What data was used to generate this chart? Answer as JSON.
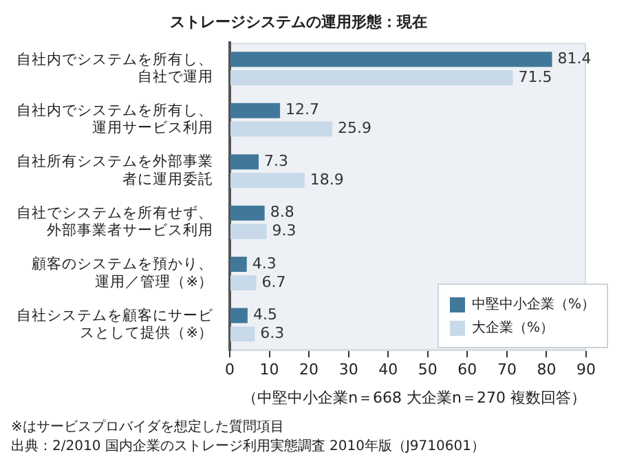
{
  "chart_data": {
    "type": "bar",
    "orientation": "horizontal",
    "title": "ストレージシステムの運用形態：現在",
    "xlabel": "（中堅中小企業n＝668 大企業n＝270 複数回答）",
    "categories": [
      "自社内でシステムを所有し、自社で運用",
      "自社内でシステムを所有し、運用サービス利用",
      "自社所有システムを外部事業者に運用委託",
      "自社でシステムを所有せず、外部事業者サービス利用",
      "顧客のシステムを預かり、運用／管理（※）",
      "自社システムを顧客にサービスとして提供（※）"
    ],
    "series": [
      {
        "name": "中堅中小企業（%）",
        "color": "#41789a",
        "values": [
          81.4,
          12.7,
          7.3,
          8.8,
          4.3,
          4.5
        ]
      },
      {
        "name": "大企業（%）",
        "color": "#c8d9e9",
        "values": [
          71.5,
          25.9,
          18.9,
          9.3,
          6.7,
          6.3
        ]
      }
    ],
    "xlim": [
      0,
      90
    ],
    "xticks": [
      0,
      10,
      20,
      30,
      40,
      50,
      60,
      70,
      80,
      90
    ],
    "data_labels": true,
    "legend": "bottom right",
    "annotations": [
      "※はサービスプロバイダを想定した質問項目",
      "出典：2/2010 国内企業のストレージ利用実態調査 2010年版（J9710601）"
    ]
  }
}
